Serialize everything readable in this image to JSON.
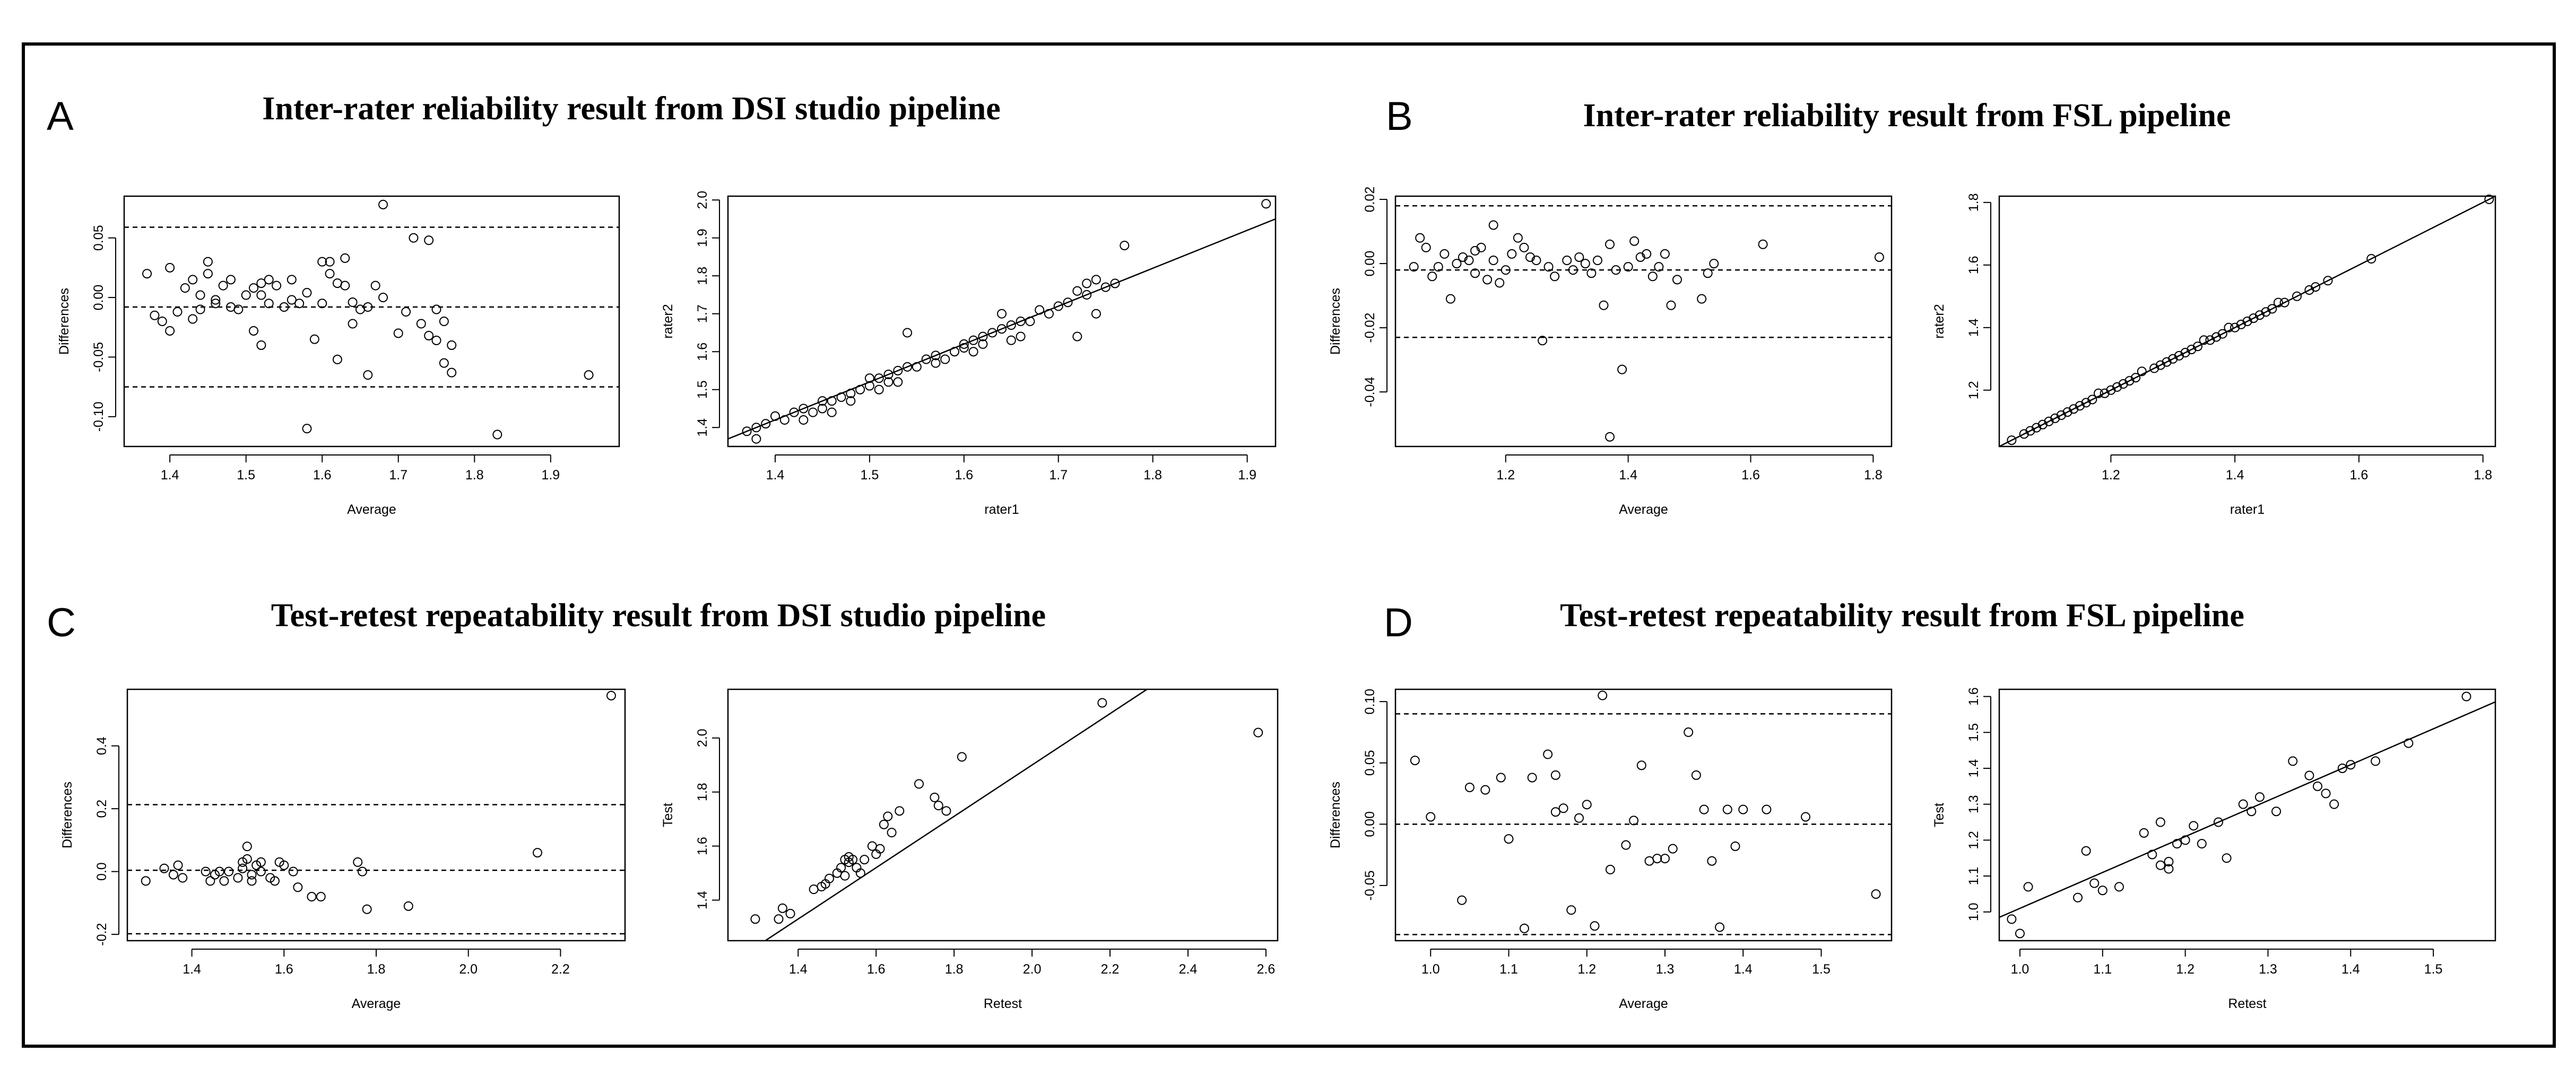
{
  "figure": {
    "panels": [
      {
        "letter": "A",
        "title": "Inter-rater reliability result from DSI studio pipeline"
      },
      {
        "letter": "B",
        "title": "Inter-rater reliability result from FSL pipeline"
      },
      {
        "letter": "C",
        "title": "Test-retest repeatability result from DSI studio pipeline"
      },
      {
        "letter": "D",
        "title": "Test-retest repeatability result from FSL pipeline"
      }
    ]
  },
  "chart_data": [
    {
      "id": "A-bland-altman",
      "panel": "A",
      "type": "scatter",
      "xlabel": "Average",
      "ylabel": "Differences",
      "xlim": [
        1.34,
        1.99
      ],
      "ylim": [
        -0.125,
        0.085
      ],
      "xticks": [
        1.4,
        1.5,
        1.6,
        1.7,
        1.8,
        1.9
      ],
      "xtick_labels": [
        "1.4",
        "1.5",
        "1.6",
        "1.7",
        "1.8",
        "1.9"
      ],
      "yticks": [
        -0.1,
        -0.05,
        0.0,
        0.05
      ],
      "ytick_labels": [
        "-0.10",
        "-0.05",
        "0.00",
        "0.05"
      ],
      "hlines": [
        0.059,
        -0.008,
        -0.075
      ],
      "x": [
        1.37,
        1.38,
        1.39,
        1.4,
        1.4,
        1.41,
        1.42,
        1.43,
        1.43,
        1.44,
        1.44,
        1.45,
        1.45,
        1.46,
        1.46,
        1.47,
        1.48,
        1.48,
        1.49,
        1.5,
        1.51,
        1.51,
        1.52,
        1.52,
        1.52,
        1.53,
        1.53,
        1.54,
        1.55,
        1.56,
        1.56,
        1.57,
        1.58,
        1.58,
        1.59,
        1.6,
        1.6,
        1.61,
        1.61,
        1.62,
        1.62,
        1.63,
        1.63,
        1.64,
        1.64,
        1.65,
        1.66,
        1.66,
        1.67,
        1.68,
        1.68,
        1.7,
        1.71,
        1.72,
        1.73,
        1.74,
        1.74,
        1.75,
        1.75,
        1.76,
        1.76,
        1.77,
        1.77,
        1.83,
        1.95
      ],
      "y": [
        0.02,
        -0.015,
        -0.02,
        -0.028,
        0.025,
        -0.012,
        0.008,
        -0.018,
        0.015,
        -0.01,
        0.002,
        0.02,
        0.03,
        -0.005,
        -0.002,
        0.01,
        -0.008,
        0.015,
        -0.01,
        0.002,
        -0.028,
        0.008,
        0.012,
        0.002,
        -0.04,
        -0.005,
        0.015,
        0.01,
        -0.008,
        -0.002,
        0.015,
        -0.005,
        -0.11,
        0.004,
        -0.035,
        0.03,
        -0.005,
        0.03,
        0.02,
        0.012,
        -0.052,
        0.033,
        0.01,
        -0.004,
        -0.022,
        -0.01,
        -0.065,
        -0.008,
        0.01,
        0.078,
        0.0,
        -0.03,
        -0.012,
        0.05,
        -0.022,
        0.048,
        -0.032,
        -0.036,
        -0.01,
        -0.02,
        -0.055,
        -0.063,
        -0.04,
        -0.115,
        -0.065
      ]
    },
    {
      "id": "A-correlation",
      "panel": "A",
      "type": "scatter",
      "xlabel": "rater1",
      "ylabel": "rater2",
      "xlim": [
        1.35,
        1.93
      ],
      "ylim": [
        1.35,
        2.01
      ],
      "xticks": [
        1.4,
        1.5,
        1.6,
        1.7,
        1.8,
        1.9
      ],
      "xtick_labels": [
        "1.4",
        "1.5",
        "1.6",
        "1.7",
        "1.8",
        "1.9"
      ],
      "yticks": [
        1.4,
        1.5,
        1.6,
        1.7,
        1.8,
        1.9,
        2.0
      ],
      "ytick_labels": [
        "1.4",
        "1.5",
        "1.6",
        "1.7",
        "1.8",
        "1.9",
        "2.0"
      ],
      "fit_line": {
        "intercept": 0.02,
        "slope": 1.0
      },
      "x": [
        1.37,
        1.38,
        1.38,
        1.39,
        1.4,
        1.41,
        1.42,
        1.43,
        1.43,
        1.44,
        1.45,
        1.45,
        1.46,
        1.46,
        1.47,
        1.48,
        1.48,
        1.49,
        1.5,
        1.5,
        1.51,
        1.51,
        1.52,
        1.52,
        1.53,
        1.53,
        1.54,
        1.54,
        1.55,
        1.56,
        1.57,
        1.57,
        1.58,
        1.59,
        1.6,
        1.6,
        1.61,
        1.61,
        1.62,
        1.62,
        1.63,
        1.64,
        1.64,
        1.65,
        1.65,
        1.66,
        1.66,
        1.67,
        1.68,
        1.69,
        1.7,
        1.71,
        1.72,
        1.72,
        1.73,
        1.73,
        1.74,
        1.74,
        1.75,
        1.76,
        1.77,
        1.92
      ],
      "y": [
        1.39,
        1.37,
        1.4,
        1.41,
        1.43,
        1.42,
        1.44,
        1.42,
        1.45,
        1.44,
        1.45,
        1.47,
        1.44,
        1.47,
        1.48,
        1.49,
        1.47,
        1.5,
        1.51,
        1.53,
        1.5,
        1.53,
        1.52,
        1.54,
        1.52,
        1.55,
        1.56,
        1.65,
        1.56,
        1.58,
        1.57,
        1.59,
        1.58,
        1.6,
        1.61,
        1.62,
        1.63,
        1.6,
        1.62,
        1.64,
        1.65,
        1.7,
        1.66,
        1.63,
        1.67,
        1.64,
        1.68,
        1.68,
        1.71,
        1.7,
        1.72,
        1.73,
        1.76,
        1.64,
        1.75,
        1.78,
        1.79,
        1.7,
        1.77,
        1.78,
        1.88,
        1.99
      ]
    },
    {
      "id": "B-bland-altman",
      "panel": "B",
      "type": "scatter",
      "xlabel": "Average",
      "ylabel": "Differences",
      "xlim": [
        1.02,
        1.83
      ],
      "ylim": [
        -0.057,
        0.021
      ],
      "xticks": [
        1.2,
        1.4,
        1.6,
        1.8
      ],
      "xtick_labels": [
        "1.2",
        "1.4",
        "1.6",
        "1.8"
      ],
      "yticks": [
        -0.04,
        -0.02,
        0.0,
        0.02
      ],
      "ytick_labels": [
        "-0.04",
        "-0.02",
        "0.00",
        "0.02"
      ],
      "hlines": [
        0.018,
        -0.002,
        -0.023
      ],
      "x": [
        1.05,
        1.06,
        1.07,
        1.08,
        1.09,
        1.1,
        1.11,
        1.12,
        1.13,
        1.14,
        1.15,
        1.15,
        1.16,
        1.17,
        1.18,
        1.18,
        1.19,
        1.2,
        1.21,
        1.22,
        1.23,
        1.24,
        1.25,
        1.26,
        1.27,
        1.28,
        1.3,
        1.31,
        1.32,
        1.33,
        1.34,
        1.35,
        1.36,
        1.37,
        1.37,
        1.38,
        1.39,
        1.4,
        1.41,
        1.42,
        1.43,
        1.44,
        1.45,
        1.46,
        1.47,
        1.48,
        1.52,
        1.53,
        1.54,
        1.62,
        1.81
      ],
      "y": [
        -0.001,
        0.008,
        0.005,
        -0.004,
        -0.001,
        0.003,
        -0.011,
        0.0,
        0.002,
        0.001,
        0.004,
        -0.003,
        0.005,
        -0.005,
        0.012,
        0.001,
        -0.006,
        -0.002,
        0.003,
        0.008,
        0.005,
        0.002,
        0.001,
        -0.024,
        -0.001,
        -0.004,
        0.001,
        -0.002,
        0.002,
        0.0,
        -0.003,
        0.001,
        -0.013,
        0.006,
        -0.054,
        -0.002,
        -0.033,
        -0.001,
        0.007,
        0.002,
        0.003,
        -0.004,
        -0.001,
        0.003,
        -0.013,
        -0.005,
        -0.011,
        -0.003,
        0.0,
        0.006,
        0.002
      ]
    },
    {
      "id": "B-correlation",
      "panel": "B",
      "type": "scatter",
      "xlabel": "rater1",
      "ylabel": "rater2",
      "xlim": [
        1.02,
        1.82
      ],
      "ylim": [
        1.02,
        1.82
      ],
      "xticks": [
        1.2,
        1.4,
        1.6,
        1.8
      ],
      "xtick_labels": [
        "1.2",
        "1.4",
        "1.6",
        "1.8"
      ],
      "yticks": [
        1.2,
        1.4,
        1.6,
        1.8
      ],
      "ytick_labels": [
        "1.2",
        "1.4",
        "1.6",
        "1.8"
      ],
      "fit_line": {
        "intercept": 0.0,
        "slope": 1.0
      },
      "x": [
        1.04,
        1.06,
        1.07,
        1.08,
        1.09,
        1.1,
        1.11,
        1.12,
        1.13,
        1.14,
        1.15,
        1.16,
        1.17,
        1.18,
        1.19,
        1.2,
        1.21,
        1.22,
        1.23,
        1.24,
        1.25,
        1.27,
        1.28,
        1.29,
        1.3,
        1.31,
        1.32,
        1.33,
        1.34,
        1.35,
        1.36,
        1.37,
        1.38,
        1.39,
        1.4,
        1.41,
        1.42,
        1.43,
        1.44,
        1.45,
        1.46,
        1.47,
        1.48,
        1.5,
        1.52,
        1.53,
        1.55,
        1.62,
        1.81
      ],
      "y": [
        1.04,
        1.06,
        1.07,
        1.08,
        1.09,
        1.1,
        1.11,
        1.12,
        1.13,
        1.14,
        1.15,
        1.16,
        1.17,
        1.19,
        1.19,
        1.2,
        1.21,
        1.22,
        1.23,
        1.24,
        1.26,
        1.27,
        1.28,
        1.29,
        1.3,
        1.31,
        1.32,
        1.33,
        1.34,
        1.36,
        1.36,
        1.37,
        1.38,
        1.4,
        1.4,
        1.41,
        1.42,
        1.43,
        1.44,
        1.45,
        1.46,
        1.48,
        1.48,
        1.5,
        1.52,
        1.53,
        1.55,
        1.62,
        1.81
      ]
    },
    {
      "id": "C-bland-altman",
      "panel": "C",
      "type": "scatter",
      "xlabel": "Average",
      "ylabel": "Differences",
      "xlim": [
        1.26,
        2.34
      ],
      "ylim": [
        -0.22,
        0.58
      ],
      "xticks": [
        1.4,
        1.6,
        1.8,
        2.0,
        2.2
      ],
      "xtick_labels": [
        "1.4",
        "1.6",
        "1.8",
        "2.0",
        "2.2"
      ],
      "yticks": [
        -0.2,
        0.0,
        0.2,
        0.4
      ],
      "ytick_labels": [
        "-0.2",
        "0.0",
        "0.2",
        "0.4"
      ],
      "hlines": [
        0.213,
        0.004,
        -0.198
      ],
      "x": [
        1.3,
        1.34,
        1.36,
        1.37,
        1.38,
        1.43,
        1.44,
        1.45,
        1.46,
        1.47,
        1.48,
        1.5,
        1.51,
        1.51,
        1.52,
        1.52,
        1.53,
        1.53,
        1.54,
        1.55,
        1.55,
        1.57,
        1.58,
        1.59,
        1.6,
        1.62,
        1.63,
        1.66,
        1.68,
        1.76,
        1.77,
        1.78,
        1.87,
        2.15,
        2.31
      ],
      "y": [
        -0.03,
        0.01,
        -0.01,
        0.02,
        -0.02,
        0.0,
        -0.03,
        -0.01,
        0.0,
        -0.03,
        0.0,
        -0.02,
        0.03,
        0.01,
        0.08,
        0.04,
        -0.01,
        -0.03,
        0.02,
        0.0,
        0.03,
        -0.02,
        -0.03,
        0.03,
        0.02,
        0.0,
        -0.05,
        -0.08,
        -0.08,
        0.03,
        0.0,
        -0.12,
        -0.11,
        0.06,
        0.56
      ]
    },
    {
      "id": "C-correlation",
      "panel": "C",
      "type": "scatter",
      "xlabel": "Retest",
      "ylabel": "Test",
      "xlim": [
        1.22,
        2.63
      ],
      "ylim": [
        1.25,
        2.18
      ],
      "xticks": [
        1.4,
        1.6,
        1.8,
        2.0,
        2.2,
        2.4,
        2.6
      ],
      "xtick_labels": [
        "1.4",
        "1.6",
        "1.8",
        "2.0",
        "2.2",
        "2.4",
        "2.6"
      ],
      "yticks": [
        1.4,
        1.6,
        1.8,
        2.0
      ],
      "ytick_labels": [
        "1.4",
        "1.6",
        "1.8",
        "2.0"
      ],
      "fit_line": {
        "intercept": 0.0,
        "slope": 0.95
      },
      "x": [
        1.29,
        1.35,
        1.36,
        1.38,
        1.44,
        1.46,
        1.47,
        1.48,
        1.5,
        1.51,
        1.52,
        1.52,
        1.53,
        1.53,
        1.54,
        1.55,
        1.56,
        1.57,
        1.59,
        1.6,
        1.61,
        1.62,
        1.63,
        1.64,
        1.66,
        1.71,
        1.75,
        1.76,
        1.78,
        1.82,
        2.18,
        2.58
      ],
      "y": [
        1.33,
        1.33,
        1.37,
        1.35,
        1.44,
        1.45,
        1.46,
        1.48,
        1.5,
        1.52,
        1.55,
        1.49,
        1.54,
        1.56,
        1.55,
        1.52,
        1.5,
        1.55,
        1.6,
        1.57,
        1.59,
        1.68,
        1.71,
        1.65,
        1.73,
        1.83,
        1.78,
        1.75,
        1.73,
        1.93,
        2.13,
        2.02
      ]
    },
    {
      "id": "D-bland-altman",
      "panel": "D",
      "type": "scatter",
      "xlabel": "Average",
      "ylabel": "Differences",
      "xlim": [
        0.955,
        1.59
      ],
      "ylim": [
        -0.095,
        0.11
      ],
      "xticks": [
        1.0,
        1.1,
        1.2,
        1.3,
        1.4,
        1.5
      ],
      "xtick_labels": [
        "1.0",
        "1.1",
        "1.2",
        "1.3",
        "1.4",
        "1.5"
      ],
      "yticks": [
        -0.05,
        0.0,
        0.05,
        0.1
      ],
      "ytick_labels": [
        "-0.05",
        "0.00",
        "0.05",
        "0.10"
      ],
      "hlines": [
        0.09,
        0.0,
        -0.09
      ],
      "x": [
        0.98,
        1.0,
        1.04,
        1.05,
        1.07,
        1.09,
        1.1,
        1.12,
        1.13,
        1.15,
        1.16,
        1.16,
        1.17,
        1.18,
        1.19,
        1.2,
        1.21,
        1.22,
        1.23,
        1.25,
        1.26,
        1.27,
        1.28,
        1.29,
        1.3,
        1.31,
        1.33,
        1.34,
        1.35,
        1.36,
        1.37,
        1.38,
        1.39,
        1.4,
        1.43,
        1.48,
        1.57
      ],
      "y": [
        0.052,
        0.006,
        -0.062,
        0.03,
        0.028,
        0.038,
        -0.012,
        -0.085,
        0.038,
        0.057,
        0.01,
        0.04,
        0.013,
        -0.07,
        0.005,
        0.016,
        -0.083,
        0.105,
        -0.037,
        -0.017,
        0.003,
        0.048,
        -0.03,
        -0.028,
        -0.028,
        -0.02,
        0.075,
        0.04,
        0.012,
        -0.03,
        -0.084,
        0.012,
        -0.018,
        0.012,
        0.012,
        0.006,
        -0.057
      ]
    },
    {
      "id": "D-correlation",
      "panel": "D",
      "type": "scatter",
      "xlabel": "Retest",
      "ylabel": "Test",
      "xlim": [
        0.975,
        1.575
      ],
      "ylim": [
        0.92,
        1.62
      ],
      "xticks": [
        1.0,
        1.1,
        1.2,
        1.3,
        1.4,
        1.5
      ],
      "xtick_labels": [
        "1.0",
        "1.1",
        "1.2",
        "1.3",
        "1.4",
        "1.5"
      ],
      "yticks": [
        1.0,
        1.1,
        1.2,
        1.3,
        1.4,
        1.5,
        1.6
      ],
      "ytick_labels": [
        "1.0",
        "1.1",
        "1.2",
        "1.3",
        "1.4",
        "1.5",
        "1.6"
      ],
      "fit_line": {
        "intercept": 0.01,
        "slope": 1.0
      },
      "x": [
        0.99,
        1.0,
        1.01,
        1.07,
        1.08,
        1.09,
        1.1,
        1.12,
        1.15,
        1.16,
        1.17,
        1.17,
        1.18,
        1.18,
        1.19,
        1.2,
        1.21,
        1.22,
        1.24,
        1.25,
        1.27,
        1.28,
        1.29,
        1.31,
        1.33,
        1.35,
        1.36,
        1.37,
        1.38,
        1.39,
        1.4,
        1.43,
        1.47,
        1.54
      ],
      "y": [
        0.98,
        0.94,
        1.07,
        1.04,
        1.17,
        1.08,
        1.06,
        1.07,
        1.22,
        1.16,
        1.25,
        1.13,
        1.14,
        1.12,
        1.19,
        1.2,
        1.24,
        1.19,
        1.25,
        1.15,
        1.3,
        1.28,
        1.32,
        1.28,
        1.42,
        1.38,
        1.35,
        1.33,
        1.3,
        1.4,
        1.41,
        1.42,
        1.47,
        1.6
      ]
    }
  ]
}
